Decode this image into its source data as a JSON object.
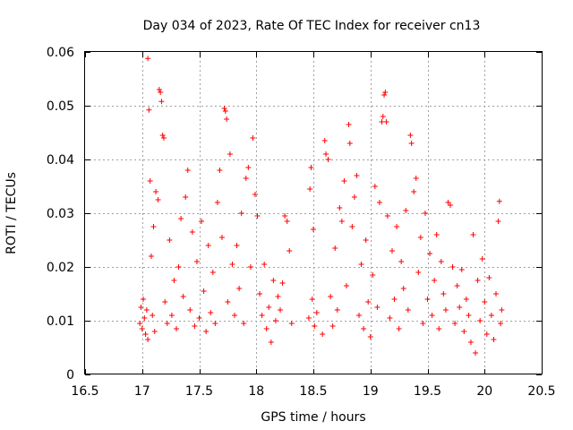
{
  "chart_data": {
    "type": "scatter",
    "title": "Day 034 of 2023, Rate Of TEC Index for receiver cn13",
    "xlabel": "GPS time / hours",
    "ylabel": "ROTI / TECUs",
    "xlim": [
      16.5,
      20.5
    ],
    "ylim": [
      0,
      0.06
    ],
    "x_ticks": [
      16.5,
      17,
      17.5,
      18,
      18.5,
      19,
      19.5,
      20,
      20.5
    ],
    "x_tick_labels": [
      "16.5",
      "17",
      "17.5",
      "18",
      "18.5",
      "19",
      "19.5",
      "20",
      "20.5"
    ],
    "y_ticks": [
      0,
      0.01,
      0.02,
      0.03,
      0.04,
      0.05,
      0.06
    ],
    "y_tick_labels": [
      "0",
      "0.01",
      "0.02",
      "0.03",
      "0.04",
      "0.05",
      "0.06"
    ],
    "grid": true,
    "marker": "plus",
    "color": "#ff0000",
    "series": [
      {
        "points": [
          [
            16.98,
            0.0095
          ],
          [
            16.99,
            0.0125
          ],
          [
            17.0,
            0.0085
          ],
          [
            17.01,
            0.014
          ],
          [
            17.02,
            0.0105
          ],
          [
            17.03,
            0.0075
          ],
          [
            17.04,
            0.012
          ],
          [
            17.05,
            0.0065
          ],
          [
            17.05,
            0.0588
          ],
          [
            17.06,
            0.0492
          ],
          [
            17.07,
            0.036
          ],
          [
            17.08,
            0.022
          ],
          [
            17.09,
            0.011
          ],
          [
            17.1,
            0.0275
          ],
          [
            17.11,
            0.008
          ],
          [
            17.12,
            0.034
          ],
          [
            17.14,
            0.0325
          ],
          [
            17.15,
            0.053
          ],
          [
            17.16,
            0.0525
          ],
          [
            17.17,
            0.0508
          ],
          [
            17.18,
            0.0445
          ],
          [
            17.19,
            0.044
          ],
          [
            17.2,
            0.0135
          ],
          [
            17.22,
            0.0095
          ],
          [
            17.24,
            0.025
          ],
          [
            17.26,
            0.011
          ],
          [
            17.28,
            0.0175
          ],
          [
            17.3,
            0.0085
          ],
          [
            17.32,
            0.02
          ],
          [
            17.34,
            0.029
          ],
          [
            17.36,
            0.0145
          ],
          [
            17.38,
            0.033
          ],
          [
            17.4,
            0.038
          ],
          [
            17.42,
            0.012
          ],
          [
            17.44,
            0.0265
          ],
          [
            17.46,
            0.009
          ],
          [
            17.48,
            0.021
          ],
          [
            17.5,
            0.0105
          ],
          [
            17.52,
            0.0285
          ],
          [
            17.54,
            0.0155
          ],
          [
            17.56,
            0.008
          ],
          [
            17.58,
            0.024
          ],
          [
            17.6,
            0.0115
          ],
          [
            17.62,
            0.019
          ],
          [
            17.64,
            0.0095
          ],
          [
            17.66,
            0.032
          ],
          [
            17.68,
            0.038
          ],
          [
            17.7,
            0.0255
          ],
          [
            17.72,
            0.0495
          ],
          [
            17.73,
            0.049
          ],
          [
            17.74,
            0.0475
          ],
          [
            17.75,
            0.0135
          ],
          [
            17.77,
            0.041
          ],
          [
            17.79,
            0.0205
          ],
          [
            17.81,
            0.011
          ],
          [
            17.83,
            0.024
          ],
          [
            17.85,
            0.016
          ],
          [
            17.87,
            0.03
          ],
          [
            17.89,
            0.0095
          ],
          [
            17.91,
            0.0365
          ],
          [
            17.93,
            0.0385
          ],
          [
            17.95,
            0.02
          ],
          [
            17.97,
            0.044
          ],
          [
            17.99,
            0.0335
          ],
          [
            18.01,
            0.0295
          ],
          [
            18.03,
            0.015
          ],
          [
            18.05,
            0.011
          ],
          [
            18.07,
            0.0205
          ],
          [
            18.09,
            0.0085
          ],
          [
            18.11,
            0.0125
          ],
          [
            18.13,
            0.006
          ],
          [
            18.15,
            0.0175
          ],
          [
            18.17,
            0.01
          ],
          [
            18.19,
            0.0145
          ],
          [
            18.21,
            0.012
          ],
          [
            18.23,
            0.017
          ],
          [
            18.25,
            0.0295
          ],
          [
            18.27,
            0.0285
          ],
          [
            18.29,
            0.023
          ],
          [
            18.31,
            0.0095
          ],
          [
            18.46,
            0.0105
          ],
          [
            18.47,
            0.0345
          ],
          [
            18.48,
            0.0385
          ],
          [
            18.49,
            0.014
          ],
          [
            18.5,
            0.027
          ],
          [
            18.51,
            0.009
          ],
          [
            18.53,
            0.0115
          ],
          [
            18.58,
            0.0075
          ],
          [
            18.6,
            0.0435
          ],
          [
            18.61,
            0.041
          ],
          [
            18.63,
            0.04
          ],
          [
            18.65,
            0.0145
          ],
          [
            18.67,
            0.009
          ],
          [
            18.69,
            0.0235
          ],
          [
            18.71,
            0.012
          ],
          [
            18.73,
            0.031
          ],
          [
            18.75,
            0.0285
          ],
          [
            18.77,
            0.036
          ],
          [
            18.79,
            0.0165
          ],
          [
            18.81,
            0.0465
          ],
          [
            18.82,
            0.043
          ],
          [
            18.84,
            0.0275
          ],
          [
            18.86,
            0.033
          ],
          [
            18.88,
            0.037
          ],
          [
            18.9,
            0.011
          ],
          [
            18.92,
            0.0205
          ],
          [
            18.94,
            0.0085
          ],
          [
            18.96,
            0.025
          ],
          [
            18.98,
            0.0135
          ],
          [
            19.0,
            0.007
          ],
          [
            19.02,
            0.0185
          ],
          [
            19.04,
            0.035
          ],
          [
            19.06,
            0.0125
          ],
          [
            19.08,
            0.032
          ],
          [
            19.1,
            0.047
          ],
          [
            19.11,
            0.048
          ],
          [
            19.12,
            0.052
          ],
          [
            19.13,
            0.0525
          ],
          [
            19.14,
            0.047
          ],
          [
            19.15,
            0.0295
          ],
          [
            19.17,
            0.0105
          ],
          [
            19.19,
            0.023
          ],
          [
            19.21,
            0.014
          ],
          [
            19.23,
            0.0275
          ],
          [
            19.25,
            0.0085
          ],
          [
            19.27,
            0.021
          ],
          [
            19.29,
            0.016
          ],
          [
            19.31,
            0.0305
          ],
          [
            19.33,
            0.012
          ],
          [
            19.35,
            0.0445
          ],
          [
            19.36,
            0.043
          ],
          [
            19.38,
            0.034
          ],
          [
            19.4,
            0.0365
          ],
          [
            19.42,
            0.019
          ],
          [
            19.44,
            0.0255
          ],
          [
            19.46,
            0.0095
          ],
          [
            19.48,
            0.03
          ],
          [
            19.5,
            0.014
          ],
          [
            19.52,
            0.0225
          ],
          [
            19.54,
            0.011
          ],
          [
            19.56,
            0.0175
          ],
          [
            19.58,
            0.026
          ],
          [
            19.6,
            0.0085
          ],
          [
            19.62,
            0.021
          ],
          [
            19.64,
            0.015
          ],
          [
            19.66,
            0.012
          ],
          [
            19.68,
            0.032
          ],
          [
            19.7,
            0.0315
          ],
          [
            19.72,
            0.02
          ],
          [
            19.74,
            0.0095
          ],
          [
            19.76,
            0.0165
          ],
          [
            19.78,
            0.0125
          ],
          [
            19.8,
            0.0195
          ],
          [
            19.82,
            0.008
          ],
          [
            19.84,
            0.014
          ],
          [
            19.86,
            0.011
          ],
          [
            19.88,
            0.006
          ],
          [
            19.9,
            0.026
          ],
          [
            19.92,
            0.004
          ],
          [
            19.94,
            0.0175
          ],
          [
            19.96,
            0.01
          ],
          [
            19.98,
            0.0215
          ],
          [
            20.0,
            0.0135
          ],
          [
            20.02,
            0.0075
          ],
          [
            20.04,
            0.018
          ],
          [
            20.06,
            0.011
          ],
          [
            20.08,
            0.0065
          ],
          [
            20.1,
            0.015
          ],
          [
            20.12,
            0.0285
          ],
          [
            20.13,
            0.0322
          ],
          [
            20.14,
            0.0095
          ],
          [
            20.15,
            0.012
          ]
        ]
      }
    ]
  }
}
